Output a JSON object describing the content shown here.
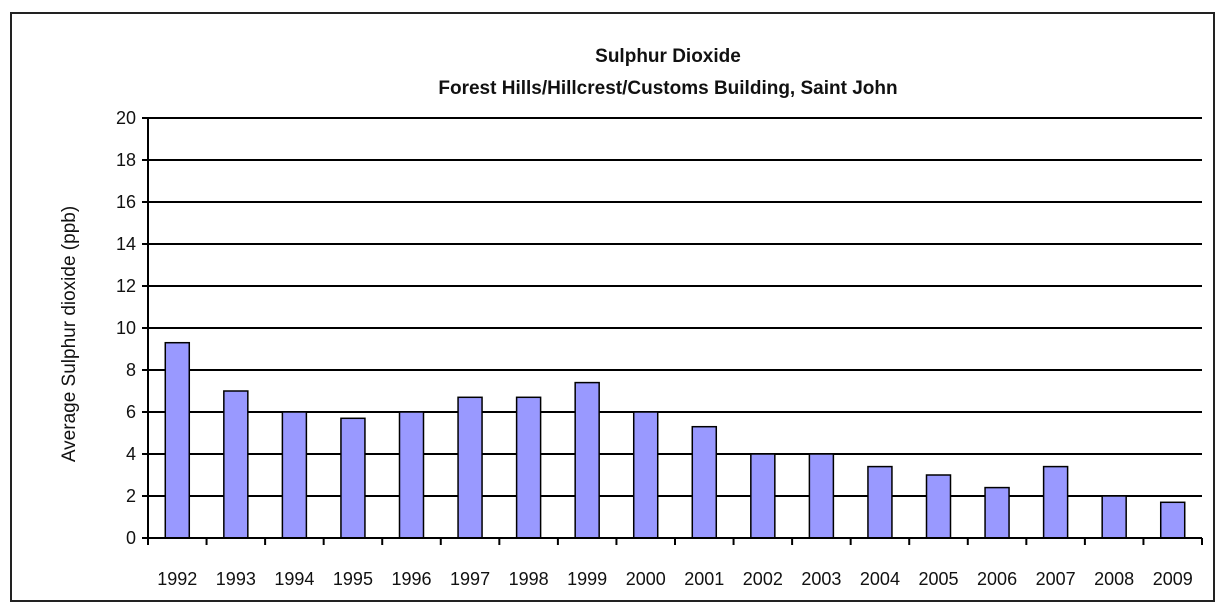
{
  "chart_data": {
    "type": "bar",
    "title": "Sulphur Dioxide",
    "subtitle": "Forest Hills/Hillcrest/Customs Building, Saint John",
    "xlabel": "",
    "ylabel": "Average Sulphur dioxide  (ppb)",
    "ylim": [
      0,
      20
    ],
    "yticks": [
      0,
      2,
      4,
      6,
      8,
      10,
      12,
      14,
      16,
      18,
      20
    ],
    "grid": true,
    "legend": "none",
    "bar_color": "#9999ff",
    "bar_edge_color": "#000000",
    "categories": [
      "1992",
      "1993",
      "1994",
      "1995",
      "1996",
      "1997",
      "1998",
      "1999",
      "2000",
      "2001",
      "2002",
      "2003",
      "2004",
      "2005",
      "2006",
      "2007",
      "2008",
      "2009"
    ],
    "values": [
      9.3,
      7.0,
      6.0,
      5.7,
      6.0,
      6.7,
      6.7,
      7.4,
      6.0,
      5.3,
      4.0,
      4.0,
      3.4,
      3.0,
      2.4,
      3.4,
      2.0,
      1.7
    ]
  }
}
